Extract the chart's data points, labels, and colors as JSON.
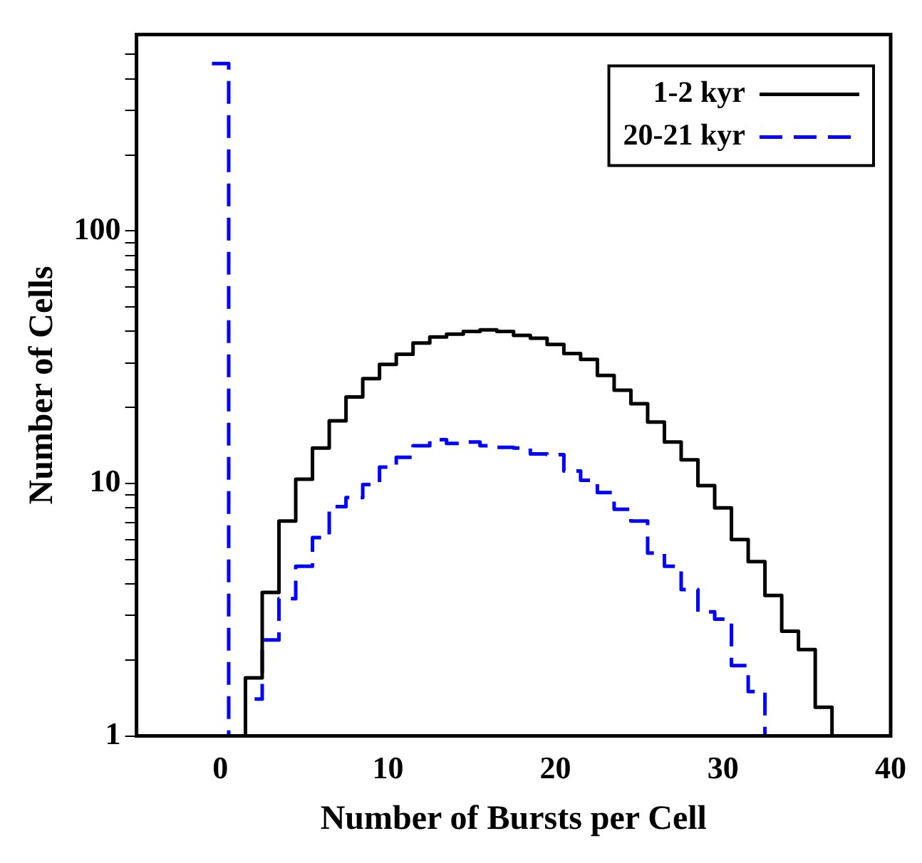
{
  "chart_data": {
    "type": "histogram",
    "xlabel": "Number of Bursts per Cell",
    "ylabel": "Number of Cells",
    "bins": [
      -0.5,
      0.5,
      1.5,
      2.5,
      3.5,
      4.5,
      5.5,
      6.5,
      7.5,
      8.5,
      9.5,
      10.5,
      11.5,
      12.5,
      13.5,
      14.5,
      15.5,
      16.5,
      17.5,
      18.5,
      19.5,
      20.5,
      21.5,
      22.5,
      23.5,
      24.5,
      25.5,
      26.5,
      27.5,
      28.5,
      29.5,
      30.5,
      31.5,
      32.5,
      33.5,
      34.5,
      35.5,
      36.5,
      37.5
    ],
    "series": [
      {
        "name": "1-2 kyr",
        "color": "#000000",
        "line_style": "solid",
        "values": [
          null,
          null,
          1.7,
          3.7,
          7.1,
          10.4,
          13.8,
          17.7,
          22,
          26,
          29.6,
          32.5,
          36,
          38,
          39,
          40,
          40.6,
          40,
          38.6,
          37.6,
          35.5,
          32.7,
          31,
          26.8,
          23.4,
          20.7,
          17.5,
          14.6,
          12.4,
          9.8,
          8,
          6,
          4.9,
          3.6,
          2.6,
          2.2,
          1.3,
          1
        ]
      },
      {
        "name": "20-21 kyr",
        "color": "#0000ff",
        "line_style": "dashed",
        "values": [
          460,
          null,
          1.4,
          2.4,
          3.5,
          4.7,
          6.1,
          8.1,
          8.8,
          9.9,
          11.6,
          12.7,
          14.1,
          14.9,
          14.4,
          14.6,
          14.1,
          13.9,
          13.8,
          13.1,
          13,
          11.2,
          10.3,
          9.2,
          7.9,
          7.1,
          5.3,
          4.7,
          3.8,
          3.1,
          2.9,
          1.9,
          1.5,
          null,
          null,
          null,
          null,
          null
        ]
      }
    ],
    "xlim": [
      -5,
      40
    ],
    "xticks": [
      0,
      10,
      20,
      30,
      40
    ],
    "log": true,
    "ylim": [
      1,
      600
    ],
    "yticks": [
      1,
      {
        "value": 2,
        "label": null
      },
      {
        "value": 3,
        "label": null
      },
      {
        "value": 4,
        "label": null
      },
      {
        "value": 5,
        "label": null
      },
      {
        "value": 6,
        "label": null
      },
      {
        "value": 7,
        "label": null
      },
      {
        "value": 8,
        "label": null
      },
      {
        "value": 9,
        "label": null
      },
      10,
      {
        "value": 20,
        "label": null
      },
      {
        "value": 30,
        "label": null
      },
      {
        "value": 40,
        "label": null
      },
      {
        "value": 50,
        "label": null
      },
      {
        "value": 60,
        "label": null
      },
      {
        "value": 70,
        "label": null
      },
      {
        "value": 80,
        "label": null
      },
      {
        "value": 90,
        "label": null
      },
      100,
      {
        "value": 200,
        "label": null
      },
      {
        "value": 300,
        "label": null
      },
      {
        "value": 400,
        "label": null
      },
      {
        "value": 500,
        "label": null
      }
    ],
    "legend": "top right"
  }
}
